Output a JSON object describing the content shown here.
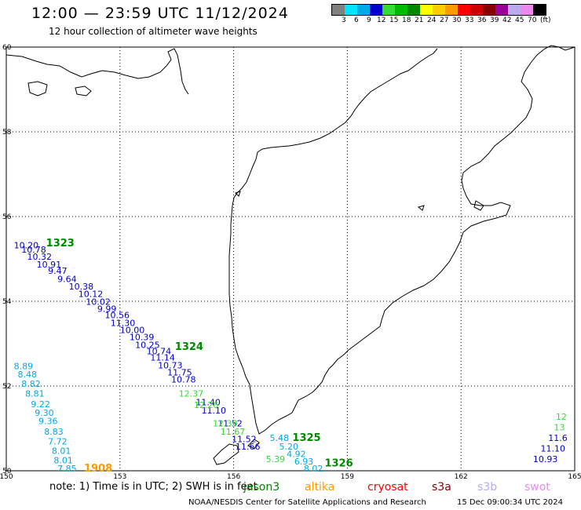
{
  "header": {
    "title": "12:00 — 23:59 UTC 11/12/2024",
    "subtitle": "12 hour collection of altimeter wave heights"
  },
  "legend": {
    "unit": "(ft)",
    "bins": [
      {
        "label": "3",
        "color": "#808080"
      },
      {
        "label": "6",
        "color": "#00e5ff"
      },
      {
        "label": "9",
        "color": "#00a8e8"
      },
      {
        "label": "12",
        "color": "#0000cc"
      },
      {
        "label": "15",
        "color": "#33dd33"
      },
      {
        "label": "18",
        "color": "#00bb00"
      },
      {
        "label": "21",
        "color": "#008800"
      },
      {
        "label": "24",
        "color": "#ffff00"
      },
      {
        "label": "27",
        "color": "#ffcc00"
      },
      {
        "label": "30",
        "color": "#ff9900"
      },
      {
        "label": "33",
        "color": "#ff0000"
      },
      {
        "label": "36",
        "color": "#cc0000"
      },
      {
        "label": "39",
        "color": "#880000"
      },
      {
        "label": "42",
        "color": "#990099"
      },
      {
        "label": "45",
        "color": "#bbaaee"
      },
      {
        "label": "70",
        "color": "#ee88ee"
      },
      {
        "label": "",
        "color": "#000000"
      }
    ]
  },
  "axes": {
    "lon_ticks": [
      "150",
      "153",
      "156",
      "159",
      "162",
      "165"
    ],
    "lat_ticks": [
      "50",
      "52",
      "54",
      "56",
      "58",
      "60"
    ]
  },
  "track_labels": [
    {
      "text": "1323",
      "lon": 151.05,
      "lat": 55.3,
      "color": "#008800"
    },
    {
      "text": "1324",
      "lon": 154.45,
      "lat": 52.85,
      "color": "#008800"
    },
    {
      "text": "1325",
      "lon": 157.55,
      "lat": 50.7,
      "color": "#008800"
    },
    {
      "text": "1326",
      "lon": 158.4,
      "lat": 50.1,
      "color": "#008800"
    },
    {
      "text": "1908",
      "lon": 152.05,
      "lat": 49.98,
      "color": "#ff9900"
    }
  ],
  "passes": [
    {
      "name": "jason-3",
      "color": "#0000cc",
      "points": [
        {
          "lon": 150.2,
          "lat": 55.25,
          "swh": "10.20"
        },
        {
          "lon": 150.4,
          "lat": 55.15,
          "swh": "10.78"
        },
        {
          "lon": 150.55,
          "lat": 54.98,
          "swh": "10.32"
        },
        {
          "lon": 150.8,
          "lat": 54.8,
          "swh": "10.91"
        },
        {
          "lon": 151.1,
          "lat": 54.65,
          "swh": "9.47"
        },
        {
          "lon": 151.35,
          "lat": 54.45,
          "swh": "9.64"
        },
        {
          "lon": 151.65,
          "lat": 54.28,
          "swh": "10.38"
        },
        {
          "lon": 151.9,
          "lat": 54.1,
          "swh": "10.12"
        },
        {
          "lon": 152.1,
          "lat": 53.92,
          "swh": "10.02"
        },
        {
          "lon": 152.4,
          "lat": 53.75,
          "swh": "9.99"
        },
        {
          "lon": 152.6,
          "lat": 53.6,
          "swh": "10.56"
        },
        {
          "lon": 152.75,
          "lat": 53.42,
          "swh": "11.30"
        },
        {
          "lon": 153.0,
          "lat": 53.25,
          "swh": "10.00"
        },
        {
          "lon": 153.25,
          "lat": 53.08,
          "swh": "10.39"
        },
        {
          "lon": 153.4,
          "lat": 52.9,
          "swh": "10.25"
        },
        {
          "lon": 153.7,
          "lat": 52.75,
          "swh": "10.74"
        },
        {
          "lon": 153.8,
          "lat": 52.6,
          "swh": "11.14"
        },
        {
          "lon": 154.0,
          "lat": 52.42,
          "swh": "10.73"
        },
        {
          "lon": 154.25,
          "lat": 52.25,
          "swh": "11.75"
        },
        {
          "lon": 154.35,
          "lat": 52.08,
          "swh": "10.78"
        },
        {
          "lon": 155.0,
          "lat": 51.55,
          "swh": "11.40"
        },
        {
          "lon": 155.15,
          "lat": 51.35,
          "swh": "11.10"
        },
        {
          "lon": 155.58,
          "lat": 51.05,
          "swh": "11.52"
        },
        {
          "lon": 155.95,
          "lat": 50.68,
          "swh": "11.52"
        },
        {
          "lon": 156.05,
          "lat": 50.5,
          "swh": "11.66"
        },
        {
          "lon": 164.3,
          "lat": 50.7,
          "swh": "11.6"
        },
        {
          "lon": 164.1,
          "lat": 50.45,
          "swh": "11.10"
        },
        {
          "lon": 163.9,
          "lat": 50.2,
          "swh": "10.93"
        }
      ]
    },
    {
      "name": "sentinel-3 green",
      "color": "#33dd33",
      "points": [
        {
          "lon": 154.55,
          "lat": 51.75,
          "swh": "12.37"
        },
        {
          "lon": 154.95,
          "lat": 51.48,
          "swh": "12.26"
        },
        {
          "lon": 155.45,
          "lat": 51.05,
          "swh": "12.39"
        },
        {
          "lon": 155.65,
          "lat": 50.85,
          "swh": "11.67"
        },
        {
          "lon": 156.85,
          "lat": 50.2,
          "swh": "5.39"
        },
        {
          "lon": 164.5,
          "lat": 51.2,
          "swh": "12"
        },
        {
          "lon": 164.45,
          "lat": 50.95,
          "swh": "13"
        }
      ]
    },
    {
      "name": "cryosat blue",
      "color": "#00a8e8",
      "points": [
        {
          "lon": 150.2,
          "lat": 52.4,
          "swh": "8.89"
        },
        {
          "lon": 150.3,
          "lat": 52.2,
          "swh": "8.48"
        },
        {
          "lon": 150.4,
          "lat": 51.98,
          "swh": "8.82"
        },
        {
          "lon": 150.5,
          "lat": 51.75,
          "swh": "8.81"
        },
        {
          "lon": 150.65,
          "lat": 51.5,
          "swh": "9.22"
        },
        {
          "lon": 150.75,
          "lat": 51.3,
          "swh": "9.30"
        },
        {
          "lon": 150.85,
          "lat": 51.1,
          "swh": "9.36"
        },
        {
          "lon": 151.0,
          "lat": 50.85,
          "swh": "8.83"
        },
        {
          "lon": 151.1,
          "lat": 50.62,
          "swh": "7.72"
        },
        {
          "lon": 151.2,
          "lat": 50.4,
          "swh": "8.01"
        },
        {
          "lon": 151.25,
          "lat": 50.18,
          "swh": "8.01"
        },
        {
          "lon": 151.35,
          "lat": 49.98,
          "swh": "7.85"
        },
        {
          "lon": 156.95,
          "lat": 50.7,
          "swh": "5.48"
        },
        {
          "lon": 157.2,
          "lat": 50.5,
          "swh": "5.20"
        },
        {
          "lon": 157.4,
          "lat": 50.32,
          "swh": "4.92"
        },
        {
          "lon": 157.6,
          "lat": 50.15,
          "swh": "6.93"
        },
        {
          "lon": 157.85,
          "lat": 49.98,
          "swh": "8.02"
        }
      ]
    }
  ],
  "footer": {
    "note": "note: 1) Time is in UTC; 2) SWH is in feet",
    "missions": [
      {
        "name": "jason3",
        "color": "#008800"
      },
      {
        "name": "altika",
        "color": "#ff9900"
      },
      {
        "name": "cryosat",
        "color": "#ff0000"
      },
      {
        "name": "s3a",
        "color": "#880000"
      },
      {
        "name": "s3b",
        "color": "#bbaaee"
      },
      {
        "name": "swot",
        "color": "#ee88ee"
      }
    ],
    "credit": "NOAA/NESDIS Center for Satellite Applications and Research",
    "generated": "15 Dec 09:00:34 UTC 2024"
  }
}
